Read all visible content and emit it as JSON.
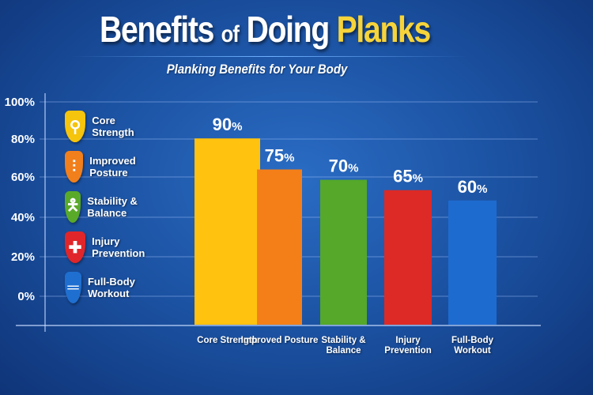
{
  "title": {
    "part1": "Benefits",
    "part2": "of",
    "part3": "Doing",
    "part4": "Planks"
  },
  "subtitle": "Planking Benefits for Your Body",
  "legend": [
    {
      "label": "Core Strength",
      "icon": "spine-torso-icon",
      "color": "#f5c40c"
    },
    {
      "label": "Improved Posture",
      "icon": "spine-icon",
      "color": "#f07f1c"
    },
    {
      "label": "Stability & Balance",
      "icon": "balance-figure-icon",
      "color": "#5aaa2a"
    },
    {
      "label": "Injury Prevention",
      "icon": "medical-cross-icon",
      "color": "#e0262a"
    },
    {
      "label": "Full-Body Workout",
      "icon": "dumbbell-icon",
      "color": "#1f6fd0"
    }
  ],
  "chart_data": {
    "type": "bar",
    "categories": [
      "Core Strength",
      "Improved Posture",
      "Stability & Balance",
      "Injury Prevention",
      "Full-Body Workout"
    ],
    "category_lines": [
      [
        "Core Strength"
      ],
      [
        "Improved Posture"
      ],
      [
        "Stability &",
        "Balance"
      ],
      [
        "Injury",
        "Prevention"
      ],
      [
        "Full-Body",
        "Workout"
      ]
    ],
    "values": [
      90,
      75,
      70,
      65,
      60
    ],
    "value_labels": [
      "90",
      "75",
      "70",
      "65",
      "60"
    ],
    "unit": "%",
    "colors": [
      "#ffc20e",
      "#f47f18",
      "#55a82a",
      "#dd2a26",
      "#1e6bd0"
    ],
    "yticks": [
      "100%",
      "80%",
      "60%",
      "40%",
      "20%",
      "0%"
    ],
    "grid": true,
    "legend_placement": "left"
  }
}
